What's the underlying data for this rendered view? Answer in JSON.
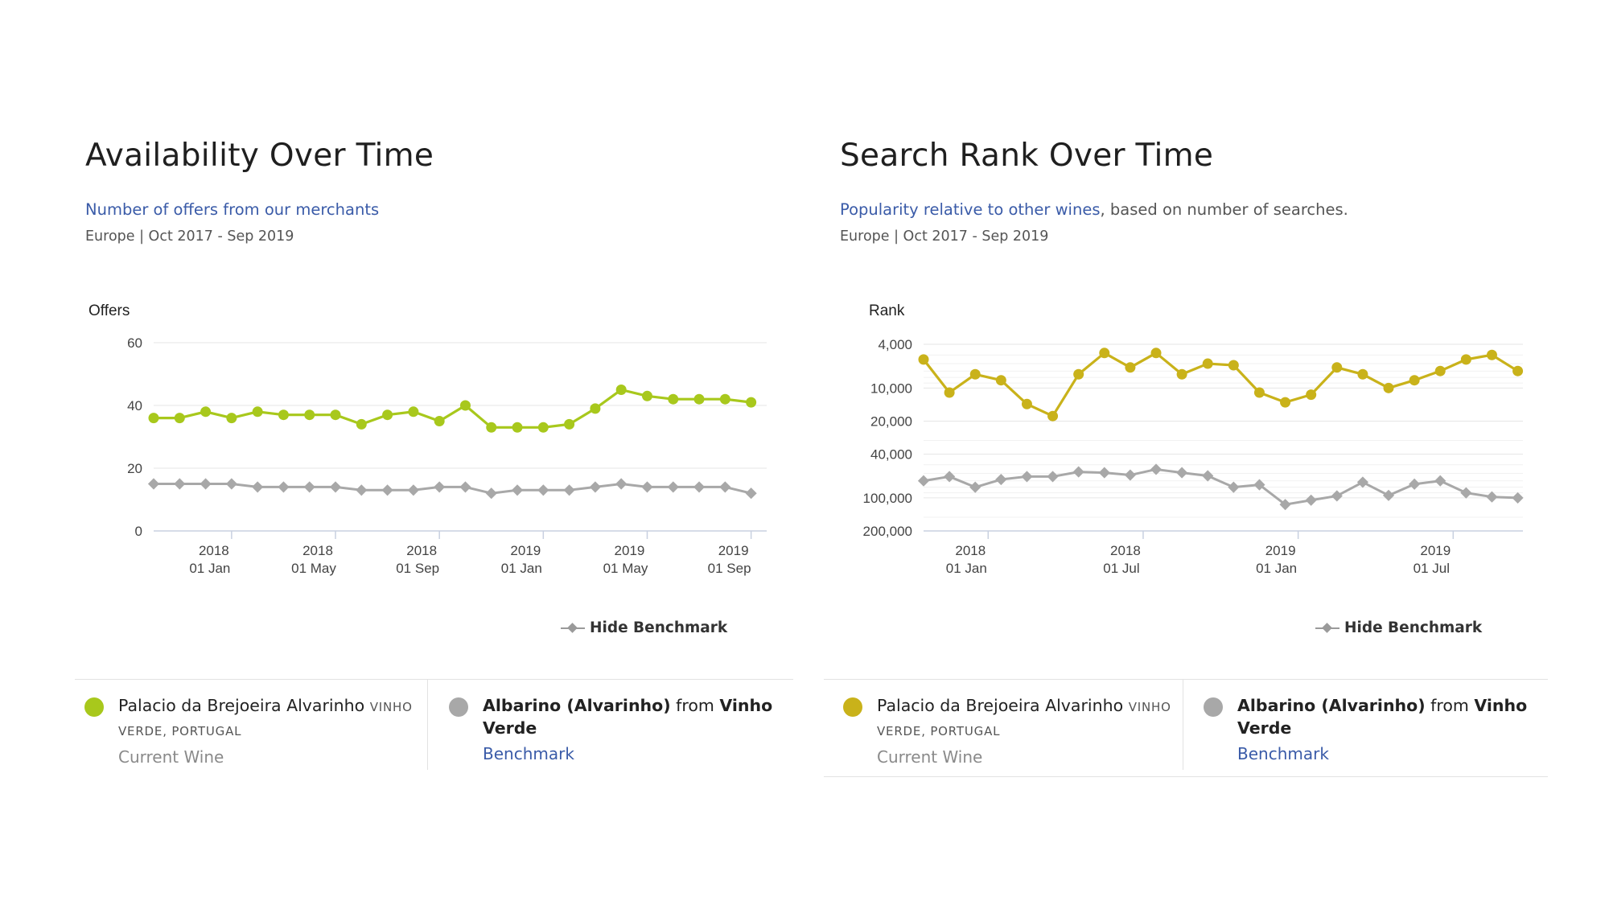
{
  "colors": {
    "current_avail": "#a8c81c",
    "current_rank": "#c9b21a",
    "benchmark": "#a8a8a8",
    "grid": "#e6e6e6",
    "axis": "#c8d0e0",
    "link": "#3a5ba8"
  },
  "availability": {
    "title": "Availability Over Time",
    "subtitle_link": "Number of offers from our merchants",
    "meta": "Europe | Oct 2017 - Sep 2019",
    "hide_benchmark": "Hide Benchmark"
  },
  "rank": {
    "title": "Search Rank Over Time",
    "subtitle_link": "Popularity relative to other wines",
    "subtitle_rest": ", based on number of searches.",
    "meta": "Europe | Oct 2017 - Sep 2019",
    "hide_benchmark": "Hide Benchmark"
  },
  "legend_left": {
    "current_name": "Palacio da Brejoeira Alvarinho",
    "current_region": "VINHO VERDE, PORTUGAL",
    "current_role": "Current Wine",
    "bench_grape": "Albarino (Alvarinho)",
    "bench_from": "from",
    "bench_region": "Vinho Verde",
    "bench_role": "Benchmark"
  },
  "legend_right": {
    "current_name": "Palacio da Brejoeira Alvarinho",
    "current_region": "VINHO VERDE, PORTUGAL",
    "current_role": "Current Wine",
    "bench_grape": "Albarino (Alvarinho)",
    "bench_from": "from",
    "bench_region": "Vinho Verde",
    "bench_role": "Benchmark"
  },
  "chart_data": [
    {
      "id": "availability",
      "type": "line",
      "ylabel": "Offers",
      "ylim": [
        0,
        60
      ],
      "yticks": [
        0,
        20,
        40,
        60
      ],
      "ytick_labels": [
        "0",
        "20",
        "40",
        "60"
      ],
      "x_months": [
        0,
        1,
        2,
        3,
        4,
        5,
        6,
        7,
        8,
        9,
        10,
        11,
        12,
        13,
        14,
        15,
        16,
        17,
        18,
        19,
        20,
        21,
        22,
        23
      ],
      "xlim": [
        0,
        23.6
      ],
      "xticks": [
        {
          "m": 3,
          "year": "2018",
          "date": "01 Jan"
        },
        {
          "m": 7,
          "year": "2018",
          "date": "01 May"
        },
        {
          "m": 11,
          "year": "2018",
          "date": "01 Sep"
        },
        {
          "m": 15,
          "year": "2019",
          "date": "01 Jan"
        },
        {
          "m": 19,
          "year": "2019",
          "date": "01 May"
        },
        {
          "m": 23,
          "year": "2019",
          "date": "01 Sep"
        }
      ],
      "series": [
        {
          "name": "Palacio da Brejoeira Alvarinho",
          "role": "current",
          "values": [
            36,
            36,
            38,
            36,
            38,
            37,
            37,
            37,
            34,
            37,
            38,
            35,
            40,
            33,
            33,
            33,
            34,
            39,
            45,
            43,
            42,
            42,
            42,
            41
          ]
        },
        {
          "name": "Albarino (Alvarinho) from Vinho Verde",
          "role": "benchmark",
          "values": [
            15,
            15,
            15,
            15,
            14,
            14,
            14,
            14,
            13,
            13,
            13,
            14,
            14,
            12,
            13,
            13,
            13,
            14,
            15,
            14,
            14,
            14,
            14,
            12
          ]
        }
      ]
    },
    {
      "id": "rank",
      "type": "line",
      "scale": "log",
      "ylabel": "Rank",
      "ylim": [
        4000,
        200000
      ],
      "yticks": [
        4000,
        10000,
        20000,
        40000,
        100000,
        200000
      ],
      "ytick_labels": [
        "4,000",
        "10,000",
        "20,000",
        "40,000",
        "100,000",
        "200,000"
      ],
      "x_months": [
        0,
        1,
        2,
        3,
        4,
        5,
        6,
        7,
        8,
        9,
        10,
        11,
        12,
        13,
        14,
        15,
        16,
        17,
        18,
        19,
        20,
        21,
        22,
        23
      ],
      "xlim": [
        0,
        23.2
      ],
      "xticks": [
        {
          "m": 2.5,
          "year": "2018",
          "date": "01 Jan"
        },
        {
          "m": 8.5,
          "year": "2018",
          "date": "01 Jul"
        },
        {
          "m": 14.5,
          "year": "2019",
          "date": "01 Jan"
        },
        {
          "m": 20.5,
          "year": "2019",
          "date": "01 Jul"
        }
      ],
      "series": [
        {
          "name": "Palacio da Brejoeira Alvarinho",
          "role": "current",
          "values": [
            5500,
            11000,
            7500,
            8500,
            14000,
            18000,
            7500,
            4800,
            6500,
            4800,
            7500,
            6000,
            6200,
            11000,
            13500,
            11500,
            6500,
            7500,
            10000,
            8500,
            7000,
            5500,
            5000,
            7000
          ]
        },
        {
          "name": "Albarino (Alvarinho) from Vinho Verde",
          "role": "benchmark",
          "values": [
            70000,
            64000,
            80000,
            68000,
            64000,
            64000,
            58000,
            59000,
            62000,
            55000,
            59000,
            63000,
            80000,
            76000,
            115000,
            105000,
            96000,
            72000,
            95000,
            75000,
            70000,
            90000,
            98000,
            100000
          ]
        }
      ]
    }
  ]
}
